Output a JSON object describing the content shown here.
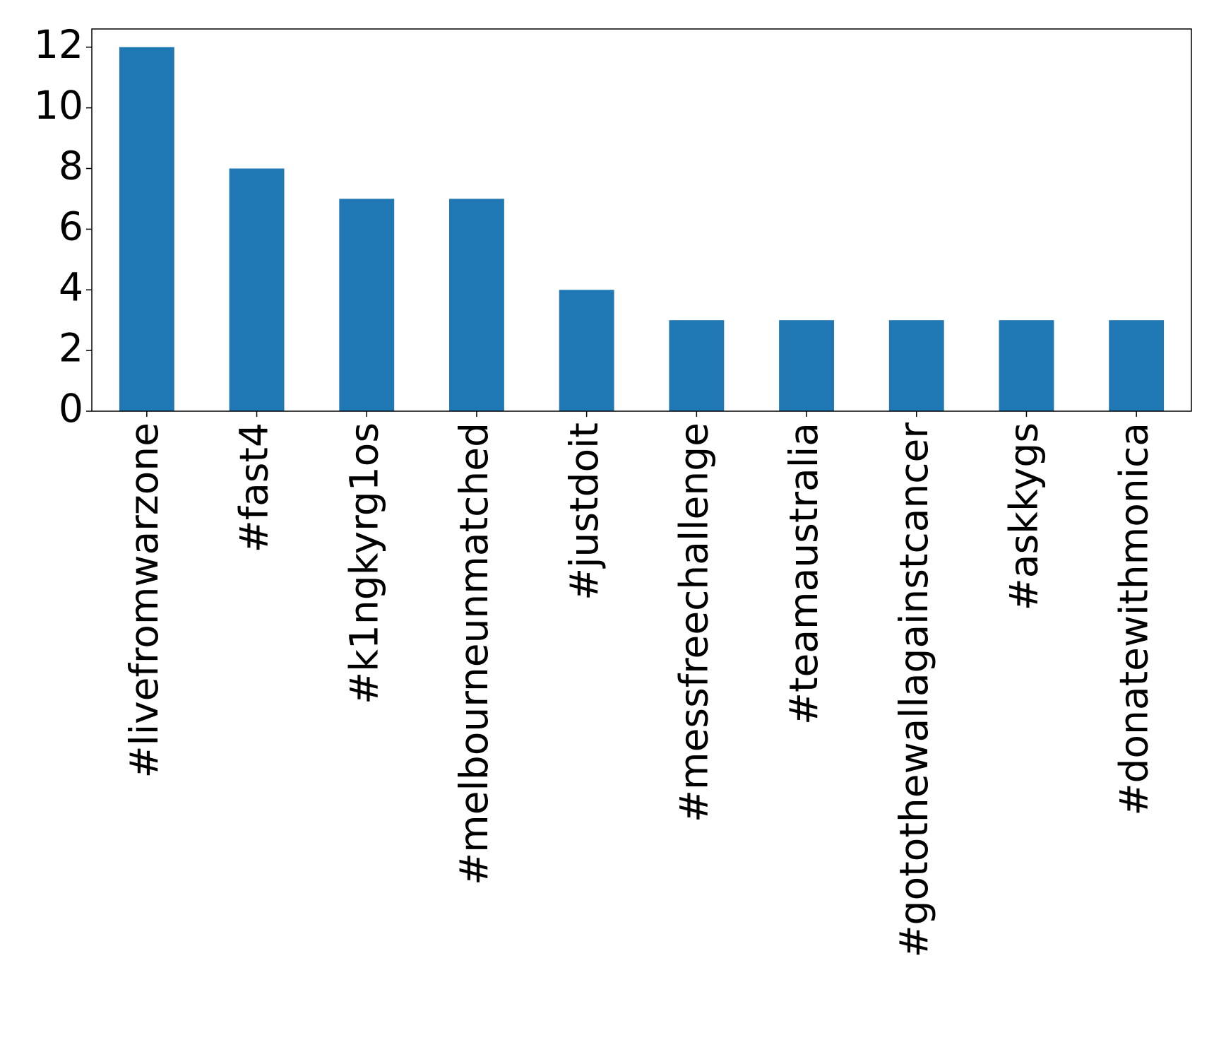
{
  "chart_data": {
    "type": "bar",
    "categories": [
      "#livefromwarzone",
      "#fast4",
      "#k1ngkyrg1os",
      "#melbourneunmatched",
      "#justdoit",
      "#messfreechallenge",
      "#teamaustralia",
      "#gotothewallagainstcancer",
      "#askkygs",
      "#donatewithmonica"
    ],
    "values": [
      12,
      8,
      7,
      7,
      4,
      3,
      3,
      3,
      3,
      3
    ],
    "color": "#1f77b4",
    "ylim": [
      0,
      12.6
    ],
    "yticks": [
      0,
      2,
      4,
      6,
      8,
      10,
      12
    ],
    "grid": false
  }
}
